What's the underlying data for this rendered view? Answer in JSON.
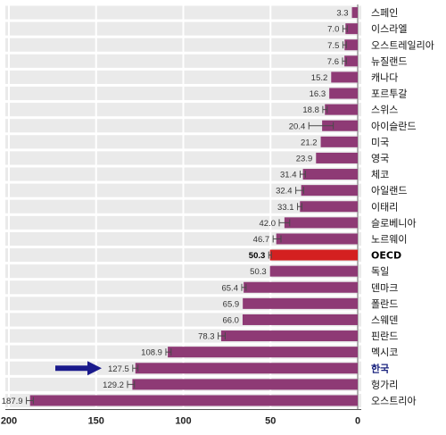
{
  "chart_data": {
    "type": "bar",
    "orientation": "horizontal",
    "x_reversed": true,
    "xlim": [
      0,
      200
    ],
    "xticks": [
      200,
      150,
      100,
      50,
      0
    ],
    "grid": true,
    "categories": [
      "스페인",
      "이스라엘",
      "오스트레일리아",
      "뉴질랜드",
      "캐나다",
      "포르투갈",
      "스위스",
      "아이슬란드",
      "미국",
      "영국",
      "체코",
      "아일랜드",
      "이태리",
      "슬로베니아",
      "노르웨이",
      "OECD",
      "독일",
      "덴마크",
      "폴란드",
      "스웨덴",
      "핀란드",
      "멕시코",
      "한국",
      "헝가리",
      "오스트리아"
    ],
    "values": [
      3.3,
      7.0,
      7.5,
      7.6,
      15.2,
      16.3,
      18.8,
      20.4,
      21.2,
      23.9,
      31.4,
      32.4,
      33.1,
      42.0,
      46.7,
      50.3,
      50.3,
      65.4,
      65.9,
      66.0,
      78.3,
      108.9,
      127.5,
      129.2,
      187.9
    ],
    "value_labels": [
      "3.3",
      "7.0",
      "7.5",
      "7.6",
      "15.2",
      "16.3",
      "18.8",
      "20.4",
      "21.2",
      "23.9",
      "31.4",
      "32.4",
      "33.1",
      "42.0",
      "46.7",
      "50.3",
      "50.3",
      "65.4",
      "65.9",
      "66.0",
      "78.3",
      "108.9",
      "127.5",
      "129.2",
      "187.9"
    ],
    "error_ranges": [
      null,
      [
        6,
        8.5
      ],
      [
        6.5,
        8.5
      ],
      [
        6.5,
        8.7
      ],
      null,
      null,
      [
        17.5,
        20
      ],
      [
        14,
        28
      ],
      null,
      null,
      [
        30,
        33
      ],
      [
        31,
        35.5
      ],
      [
        32,
        34.5
      ],
      [
        39,
        45
      ],
      [
        44,
        48.5
      ],
      [
        49.5,
        51
      ],
      null,
      [
        64,
        66.5
      ],
      null,
      null,
      [
        76,
        80
      ],
      [
        107,
        110
      ],
      [
        126,
        129
      ],
      [
        128,
        132
      ],
      [
        186,
        190
      ]
    ],
    "highlight_index": 15,
    "arrow_index": 22,
    "colors": {
      "bar": "#8e3a75",
      "highlight": "#d42020",
      "arrow": "#1a1a8c",
      "row_bg": "#eaeaea",
      "grid": "#ffffff",
      "error": "#4a4a4a",
      "korea_label": "#1a237e"
    }
  }
}
